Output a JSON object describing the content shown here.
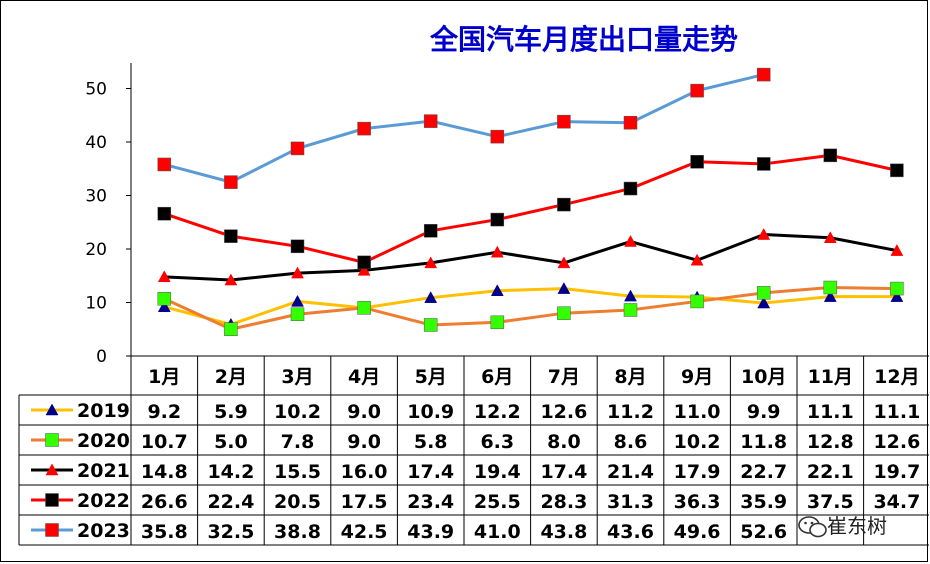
{
  "chart_data": {
    "type": "line",
    "title": "全国汽车月度出口量走势",
    "xlabel": "",
    "ylabel": "",
    "ylim": [
      0,
      55
    ],
    "yticks": [
      0,
      10,
      20,
      30,
      40,
      50
    ],
    "categories": [
      "1月",
      "2月",
      "3月",
      "4月",
      "5月",
      "6月",
      "7月",
      "8月",
      "9月",
      "10月",
      "11月",
      "12月"
    ],
    "grid": false,
    "legend": "data-table-left",
    "series": [
      {
        "name": "2019",
        "color": "#FFC000",
        "marker": "triangle",
        "marker_color": "#00008B",
        "values": [
          9.2,
          5.9,
          10.2,
          9.0,
          10.9,
          12.2,
          12.6,
          11.2,
          11.0,
          9.9,
          11.1,
          11.1
        ],
        "labels": [
          "9.2",
          "5.9",
          "10.2",
          "9.0",
          "10.9",
          "12.2",
          "12.6",
          "11.2",
          "11.0",
          "9.9",
          "11.1",
          "11.1"
        ]
      },
      {
        "name": "2020",
        "color": "#ED7D31",
        "marker": "square",
        "marker_color": "#33FF00",
        "values": [
          10.7,
          5.0,
          7.8,
          9.0,
          5.8,
          6.3,
          8.0,
          8.6,
          10.2,
          11.8,
          12.8,
          12.6
        ],
        "labels": [
          "10.7",
          "5.0",
          "7.8",
          "9.0",
          "5.8",
          "6.3",
          "8.0",
          "8.6",
          "10.2",
          "11.8",
          "12.8",
          "12.6"
        ]
      },
      {
        "name": "2021",
        "color": "#000000",
        "marker": "triangle",
        "marker_color": "#FF0000",
        "values": [
          14.8,
          14.2,
          15.5,
          16.0,
          17.4,
          19.4,
          17.4,
          21.4,
          17.9,
          22.7,
          22.1,
          19.7
        ],
        "labels": [
          "14.8",
          "14.2",
          "15.5",
          "16.0",
          "17.4",
          "19.4",
          "17.4",
          "21.4",
          "17.9",
          "22.7",
          "22.1",
          "19.7"
        ]
      },
      {
        "name": "2022",
        "color": "#FF0000",
        "marker": "square",
        "marker_color": "#000000",
        "values": [
          26.6,
          22.4,
          20.5,
          17.5,
          23.4,
          25.5,
          28.3,
          31.3,
          36.3,
          35.9,
          37.5,
          34.7
        ],
        "labels": [
          "26.6",
          "22.4",
          "20.5",
          "17.5",
          "23.4",
          "25.5",
          "28.3",
          "31.3",
          "36.3",
          "35.9",
          "37.5",
          "34.7"
        ]
      },
      {
        "name": "2023",
        "color": "#5B9BD5",
        "marker": "square",
        "marker_color": "#FF0000",
        "values": [
          35.8,
          32.5,
          38.8,
          42.5,
          43.9,
          41.0,
          43.8,
          43.6,
          49.6,
          52.6,
          null,
          null
        ],
        "labels": [
          "35.8",
          "32.5",
          "38.8",
          "42.5",
          "43.9",
          "41.0",
          "43.8",
          "43.6",
          "49.6",
          "52.6",
          "",
          ""
        ]
      }
    ]
  },
  "colors": {
    "title": "#0000CC",
    "axis": "#000000",
    "text": "#000000"
  },
  "watermark": {
    "text": "崔东树",
    "icon": "wechat-icon"
  }
}
